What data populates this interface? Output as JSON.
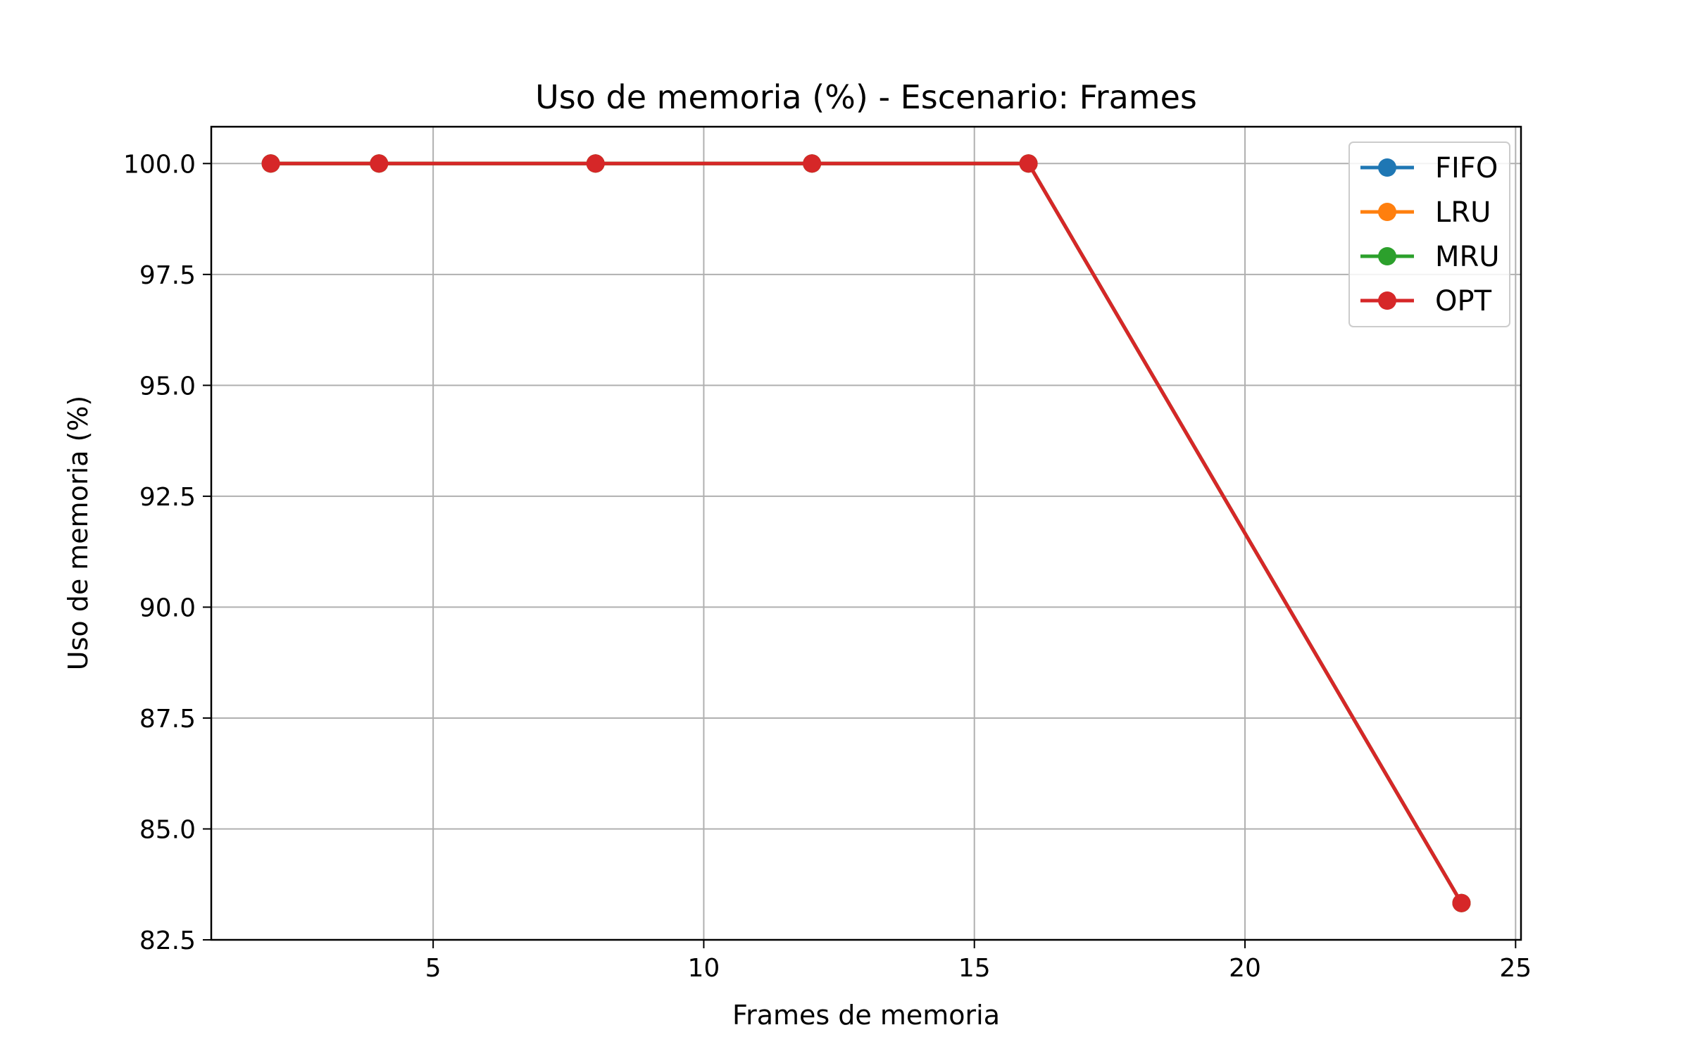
{
  "chart_data": {
    "type": "line",
    "title": "Uso de memoria (%) - Escenario: Frames",
    "xlabel": "Frames de memoria",
    "ylabel": "Uso de memoria (%)",
    "xlim": [
      0.9,
      25.1
    ],
    "ylim": [
      82.5,
      100.83
    ],
    "xticks": [
      5,
      10,
      15,
      20,
      25
    ],
    "xtick_labels": [
      "5",
      "10",
      "15",
      "20",
      "25"
    ],
    "yticks": [
      82.5,
      85.0,
      87.5,
      90.0,
      92.5,
      95.0,
      97.5,
      100.0
    ],
    "ytick_labels": [
      "82.5",
      "85.0",
      "87.5",
      "90.0",
      "92.5",
      "95.0",
      "97.5",
      "100.0"
    ],
    "grid": true,
    "legend_position": "top-right",
    "x": [
      2,
      4,
      8,
      12,
      16,
      24
    ],
    "series": [
      {
        "name": "FIFO",
        "color": "#1f77b4",
        "values": [
          100.0,
          100.0,
          100.0,
          100.0,
          100.0,
          83.33
        ]
      },
      {
        "name": "LRU",
        "color": "#ff7f0e",
        "values": [
          100.0,
          100.0,
          100.0,
          100.0,
          100.0,
          83.33
        ]
      },
      {
        "name": "MRU",
        "color": "#2ca02c",
        "values": [
          100.0,
          100.0,
          100.0,
          100.0,
          100.0,
          83.33
        ]
      },
      {
        "name": "OPT",
        "color": "#d62728",
        "values": [
          100.0,
          100.0,
          100.0,
          100.0,
          100.0,
          83.33
        ]
      }
    ]
  }
}
